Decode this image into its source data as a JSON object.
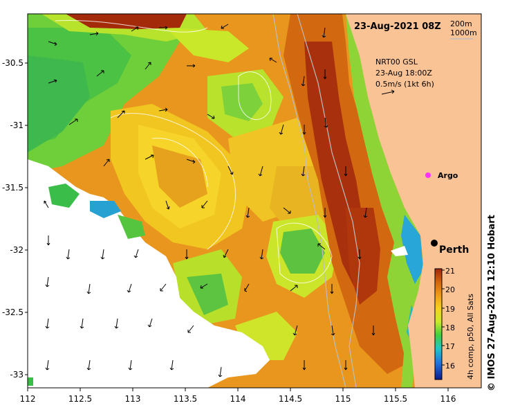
{
  "map": {
    "date_title": "23-Aug-2021 08Z",
    "bathymetry_legend": [
      "200m",
      "1000m"
    ],
    "current_legend": [
      "NRT00 GSL",
      "23-Aug 18:00Z",
      "0.5m/s (1kt 6h)"
    ],
    "places": {
      "argo_label": "Argo",
      "city_label": "Perth"
    },
    "colorbar": {
      "label": "4h comp, p50, All Sats",
      "ticks": [
        "21",
        "20",
        "19",
        "18",
        "17",
        "16"
      ],
      "colors": [
        "#0b1a8c",
        "#1f73e0",
        "#22c6c6",
        "#3fcf3f",
        "#c8ea2a",
        "#f6d21e",
        "#ef9d18",
        "#d2650c",
        "#a0230a"
      ]
    },
    "credit": "© IMOS 27-Aug-2021 12:10 Hobart",
    "axes": {
      "x_ticks": [
        "112",
        "112.5",
        "113",
        "113.5",
        "114",
        "114.5",
        "115",
        "115.5",
        "116"
      ],
      "y_ticks": [
        "-30.5",
        "-31",
        "-31.5",
        "-32",
        "-32.5",
        "-33"
      ],
      "xlim": [
        112,
        116.3
      ],
      "ylim": [
        -33.1,
        -30.1
      ]
    },
    "colors": {
      "land": "#fac396",
      "ocean_warm": "#e9971e",
      "ocean_cool": "#9bd62a",
      "argo_marker": "#ff33ff"
    }
  }
}
